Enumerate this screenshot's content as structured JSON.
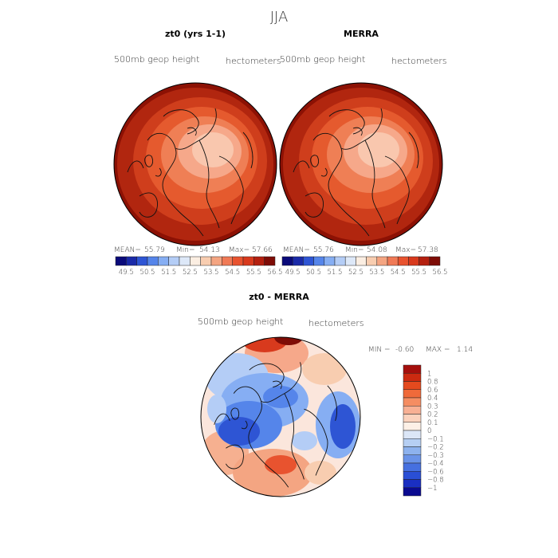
{
  "page_title": "JJA",
  "chart_data": [
    {
      "type": "heatmap",
      "title": "zt0 (yrs 1-1)",
      "subtitle_left": "500mb  geop  height",
      "subtitle_right": "hectometers",
      "stats": {
        "mean_label": "MEAN=",
        "mean": "55.79",
        "min_label": "Min=",
        "min": "54.13",
        "max_label": "Max=",
        "max": "57.66"
      },
      "colorbar_ticks": [
        "49.5",
        "50.5",
        "51.5",
        "52.5",
        "53.5",
        "54.5",
        "55.5",
        "56.5"
      ],
      "colorbar_colors": [
        "#0a0a7a",
        "#1a2aa8",
        "#2e55d4",
        "#5585ea",
        "#86aef3",
        "#b4cdf6",
        "#dde8f8",
        "#fbeee2",
        "#f8cdb0",
        "#f4a582",
        "#f07a56",
        "#e8532f",
        "#d83a1d",
        "#b4200f",
        "#7e0c06"
      ],
      "levels": [
        "#8c1104",
        "#b1260f",
        "#cf3e1c",
        "#e55a2e",
        "#ef7f55",
        "#f6a88a",
        "#f9c7ae"
      ]
    },
    {
      "type": "heatmap",
      "title": "MERRA",
      "subtitle_left": "500mb  geop  height",
      "subtitle_right": "hectometers",
      "stats": {
        "mean_label": "MEAN=",
        "mean": "55.76",
        "min_label": "Min=",
        "min": "54.08",
        "max_label": "Max=",
        "max": "57.38"
      },
      "colorbar_ticks": [
        "49.5",
        "50.5",
        "51.5",
        "52.5",
        "53.5",
        "54.5",
        "55.5",
        "56.5"
      ],
      "colorbar_colors": [
        "#0a0a7a",
        "#1a2aa8",
        "#2e55d4",
        "#5585ea",
        "#86aef3",
        "#b4cdf6",
        "#dde8f8",
        "#fbeee2",
        "#f8cdb0",
        "#f4a582",
        "#f07a56",
        "#e8532f",
        "#d83a1d",
        "#b4200f",
        "#7e0c06"
      ],
      "levels": [
        "#8c1104",
        "#b1260f",
        "#cf3e1c",
        "#e55a2e",
        "#ef7f55",
        "#f6a88a",
        "#f9c7ae"
      ]
    },
    {
      "type": "heatmap",
      "title": "zt0 - MERRA",
      "subtitle_left": "500mb  geop  height",
      "subtitle_right": "hectometers",
      "stats": {
        "min_label": "MIN =",
        "min": "-0.60",
        "max_label": "MAX =",
        "max": "1.14"
      },
      "colorbar_ticks": [
        "1",
        "0.8",
        "0.6",
        "0.4",
        "0.3",
        "0.2",
        "0.1",
        "0",
        "−0.1",
        "−0.2",
        "−0.3",
        "−0.4",
        "−0.6",
        "−0.8",
        "−1"
      ],
      "colorbar_colors": [
        "#a50f0c",
        "#cc2a10",
        "#e44a1e",
        "#f06a3a",
        "#f58d62",
        "#f8b094",
        "#fbd2bd",
        "#fdf0e6",
        "#dbe6f7",
        "#b6cff3",
        "#8db2ee",
        "#6a93e8",
        "#4670e0",
        "#2a4fd6",
        "#1a2fc2",
        "#0a0a90"
      ]
    }
  ]
}
